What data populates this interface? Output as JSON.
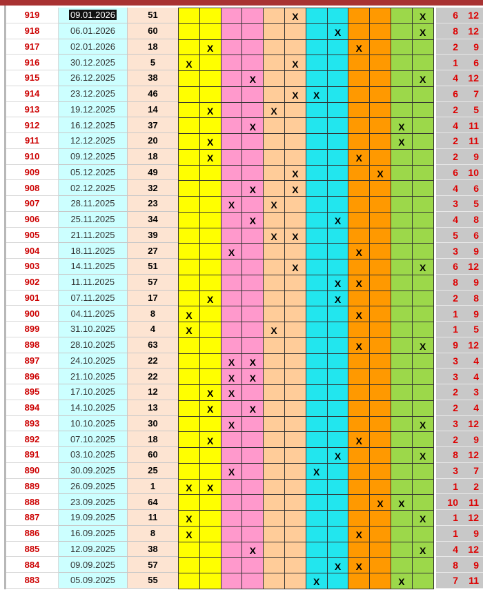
{
  "mark_text": "X",
  "rows": [
    [
      "919",
      "09.01.2026",
      "51",
      "6",
      "12"
    ],
    [
      "918",
      "06.01.2026",
      "60",
      "8",
      "12"
    ],
    [
      "917",
      "02.01.2026",
      "18",
      "2",
      "9"
    ],
    [
      "916",
      "30.12.2025",
      "5",
      "1",
      "6"
    ],
    [
      "915",
      "26.12.2025",
      "38",
      "4",
      "12"
    ],
    [
      "914",
      "23.12.2025",
      "46",
      "6",
      "7"
    ],
    [
      "913",
      "19.12.2025",
      "14",
      "2",
      "5"
    ],
    [
      "912",
      "16.12.2025",
      "37",
      "4",
      "11"
    ],
    [
      "911",
      "12.12.2025",
      "20",
      "2",
      "11"
    ],
    [
      "910",
      "09.12.2025",
      "18",
      "2",
      "9"
    ],
    [
      "909",
      "05.12.2025",
      "49",
      "6",
      "10"
    ],
    [
      "908",
      "02.12.2025",
      "32",
      "4",
      "6"
    ],
    [
      "907",
      "28.11.2025",
      "23",
      "3",
      "5"
    ],
    [
      "906",
      "25.11.2025",
      "34",
      "4",
      "8"
    ],
    [
      "905",
      "21.11.2025",
      "39",
      "5",
      "6"
    ],
    [
      "904",
      "18.11.2025",
      "27",
      "3",
      "9"
    ],
    [
      "903",
      "14.11.2025",
      "51",
      "6",
      "12"
    ],
    [
      "902",
      "11.11.2025",
      "57",
      "8",
      "9"
    ],
    [
      "901",
      "07.11.2025",
      "17",
      "2",
      "8"
    ],
    [
      "900",
      "04.11.2025",
      "8",
      "1",
      "9"
    ],
    [
      "899",
      "31.10.2025",
      "4",
      "1",
      "5"
    ],
    [
      "898",
      "28.10.2025",
      "63",
      "9",
      "12"
    ],
    [
      "897",
      "24.10.2025",
      "22",
      "3",
      "4"
    ],
    [
      "896",
      "21.10.2025",
      "22",
      "3",
      "4"
    ],
    [
      "895",
      "17.10.2025",
      "12",
      "2",
      "3"
    ],
    [
      "894",
      "14.10.2025",
      "13",
      "2",
      "4"
    ],
    [
      "893",
      "10.10.2025",
      "30",
      "3",
      "12"
    ],
    [
      "892",
      "07.10.2025",
      "18",
      "2",
      "9"
    ],
    [
      "891",
      "03.10.2025",
      "60",
      "8",
      "12"
    ],
    [
      "890",
      "30.09.2025",
      "25",
      "3",
      "7"
    ],
    [
      "889",
      "26.09.2025",
      "1",
      "1",
      "2"
    ],
    [
      "888",
      "23.09.2025",
      "64",
      "10",
      "11"
    ],
    [
      "887",
      "19.09.2025",
      "11",
      "1",
      "12"
    ],
    [
      "886",
      "16.09.2025",
      "8",
      "1",
      "9"
    ],
    [
      "885",
      "12.09.2025",
      "38",
      "4",
      "12"
    ],
    [
      "884",
      "09.09.2025",
      "57",
      "8",
      "9"
    ],
    [
      "883",
      "05.09.2025",
      "55",
      "7",
      "11"
    ]
  ]
}
